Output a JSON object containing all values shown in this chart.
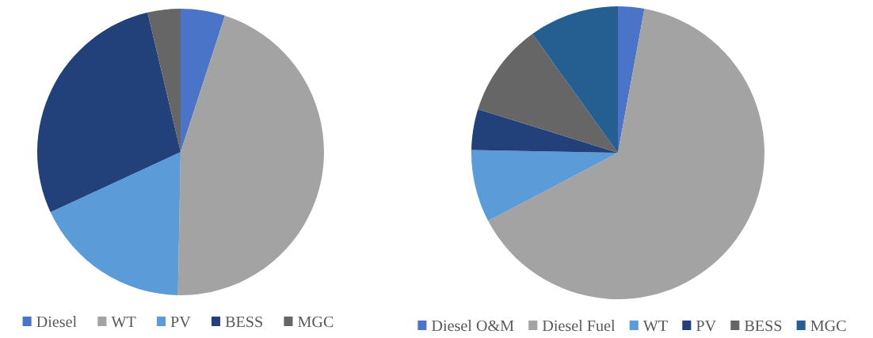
{
  "chart_data": [
    {
      "type": "pie",
      "categories": [
        "Diesel",
        "WT",
        "PV",
        "BESS",
        "MGC"
      ],
      "values": [
        5.0,
        45.3,
        17.8,
        28.2,
        3.7
      ],
      "colors": [
        "#4a74c8",
        "#a3a3a3",
        "#5b9bd8",
        "#22407a",
        "#666666"
      ],
      "legend": "bottom"
    },
    {
      "type": "pie",
      "categories": [
        "Diesel O&M",
        "Diesel Fuel",
        "WT",
        "PV",
        "BESS",
        "MGC"
      ],
      "values": [
        2.9,
        64.4,
        8.0,
        4.5,
        10.3,
        9.9
      ],
      "colors": [
        "#4a74c8",
        "#a3a3a3",
        "#5b9bd8",
        "#22407a",
        "#666666",
        "#255e91"
      ],
      "legend": "bottom"
    }
  ]
}
